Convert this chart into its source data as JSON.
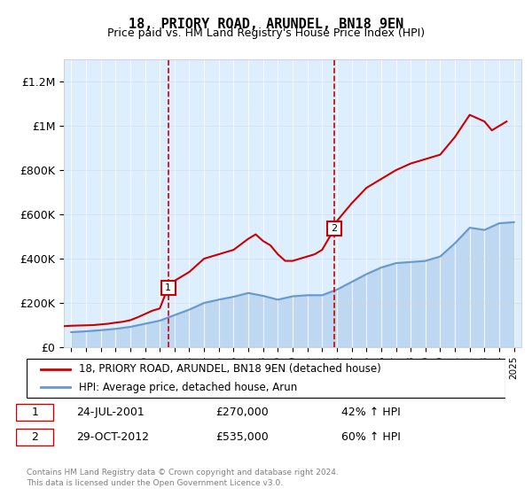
{
  "title": "18, PRIORY ROAD, ARUNDEL, BN18 9EN",
  "subtitle": "Price paid vs. HM Land Registry's House Price Index (HPI)",
  "legend_line1": "18, PRIORY ROAD, ARUNDEL, BN18 9EN (detached house)",
  "legend_line2": "HPI: Average price, detached house, Arun",
  "transaction1_label": "1",
  "transaction1_date": "24-JUL-2001",
  "transaction1_price": "£270,000",
  "transaction1_hpi": "42% ↑ HPI",
  "transaction1_year": 2001.56,
  "transaction2_label": "2",
  "transaction2_date": "29-OCT-2012",
  "transaction2_price": "£535,000",
  "transaction2_hpi": "60% ↑ HPI",
  "transaction2_year": 2012.83,
  "footer": "Contains HM Land Registry data © Crown copyright and database right 2024.\nThis data is licensed under the Open Government Licence v3.0.",
  "red_color": "#cc0000",
  "blue_color": "#6699cc",
  "bg_shade": "#ddeeff",
  "ylim": [
    0,
    1300000
  ],
  "yticks": [
    0,
    200000,
    400000,
    600000,
    800000,
    1000000,
    1200000
  ],
  "ytick_labels": [
    "£0",
    "£200K",
    "£400K",
    "£600K",
    "£800K",
    "£1M",
    "£1.2M"
  ],
  "hpi_years": [
    1995,
    1996,
    1997,
    1998,
    1999,
    2000,
    2001,
    2002,
    2003,
    2004,
    2005,
    2006,
    2007,
    2008,
    2009,
    2010,
    2011,
    2012,
    2013,
    2014,
    2015,
    2016,
    2017,
    2018,
    2019,
    2020,
    2021,
    2022,
    2023,
    2024,
    2025
  ],
  "hpi_values": [
    68000,
    72000,
    77000,
    83000,
    92000,
    106000,
    120000,
    145000,
    170000,
    200000,
    215000,
    228000,
    245000,
    232000,
    215000,
    230000,
    235000,
    235000,
    260000,
    295000,
    330000,
    360000,
    380000,
    385000,
    390000,
    410000,
    470000,
    540000,
    530000,
    560000,
    565000
  ],
  "red_years": [
    1994.5,
    1995,
    1995.5,
    1996,
    1996.5,
    1997,
    1997.5,
    1998,
    1998.5,
    1999,
    1999.5,
    2000,
    2000.5,
    2001,
    2001.56,
    2002,
    2003,
    2004,
    2005,
    2006,
    2007,
    2007.5,
    2008,
    2008.5,
    2009,
    2009.5,
    2010,
    2010.5,
    2011,
    2011.5,
    2012,
    2012.83,
    2013,
    2014,
    2015,
    2016,
    2017,
    2018,
    2019,
    2020,
    2021,
    2022,
    2023,
    2023.5,
    2024,
    2024.5
  ],
  "red_values": [
    95000,
    97000,
    98000,
    99000,
    100000,
    103000,
    106000,
    111000,
    115000,
    122000,
    135000,
    150000,
    165000,
    175000,
    270000,
    300000,
    340000,
    400000,
    420000,
    440000,
    490000,
    510000,
    480000,
    460000,
    420000,
    390000,
    390000,
    400000,
    410000,
    420000,
    440000,
    535000,
    570000,
    650000,
    720000,
    760000,
    800000,
    830000,
    850000,
    870000,
    950000,
    1050000,
    1020000,
    980000,
    1000000,
    1020000
  ]
}
